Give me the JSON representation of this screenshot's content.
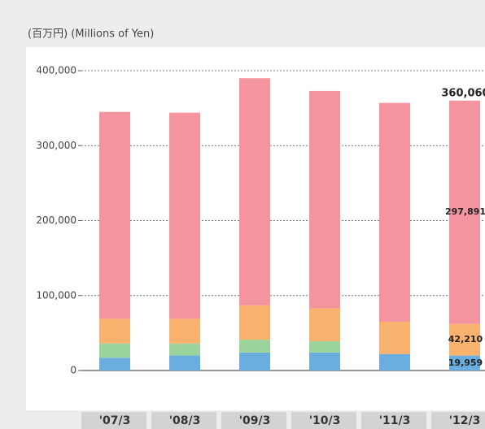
{
  "chart_data": {
    "type": "stacked_bar",
    "unit_label": "(百万円) (Millions of Yen)",
    "categories": [
      "'07/3",
      "'08/3",
      "'09/3",
      "'10/3",
      "'11/3",
      "'12/3"
    ],
    "series": [
      {
        "color": "#6aaee0",
        "values": [
          17000,
          20000,
          24000,
          24000,
          22000,
          19959
        ],
        "value_labels": [
          null,
          null,
          null,
          null,
          null,
          "19,959"
        ]
      },
      {
        "color": "#9ad49a",
        "values": [
          19000,
          16000,
          17000,
          15000,
          0,
          0
        ]
      },
      {
        "color": "#f8b26e",
        "values": [
          33000,
          33000,
          46000,
          44000,
          43000,
          42210
        ],
        "value_labels": [
          null,
          null,
          null,
          null,
          null,
          "42,210"
        ]
      },
      {
        "color": "#f4949f",
        "values": [
          276000,
          275000,
          303000,
          290000,
          292000,
          297891
        ],
        "value_labels": [
          null,
          null,
          null,
          null,
          null,
          "297,891"
        ]
      }
    ],
    "total_labels": [
      null,
      null,
      null,
      null,
      null,
      {
        "value": 360060,
        "label": "360,060"
      }
    ],
    "ylim": [
      0,
      400000
    ],
    "yticks": [
      0,
      {
        "value": 100000,
        "label": "100,000"
      },
      {
        "value": 200000,
        "label": "200,000"
      },
      {
        "value": 300000,
        "label": "300,000"
      },
      {
        "value": 400000,
        "label": "400,000"
      }
    ],
    "grid": true
  }
}
